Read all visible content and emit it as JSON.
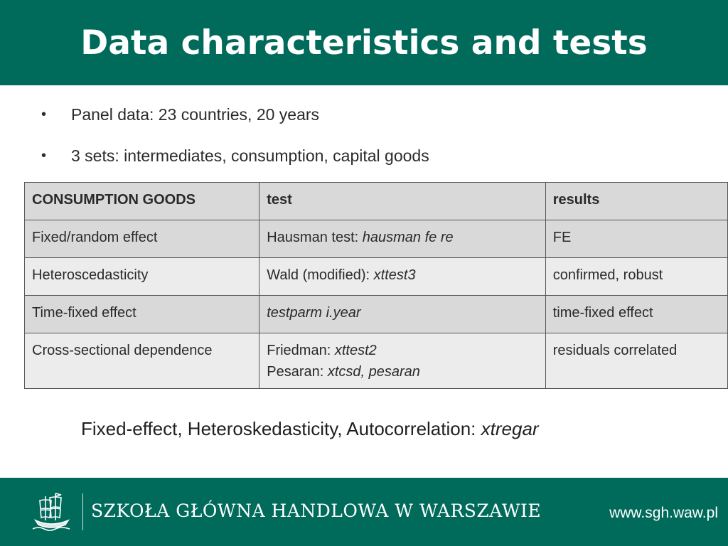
{
  "header": {
    "title": "Data characteristics and tests"
  },
  "bullets": [
    "Panel data: 23 countries, 20 years",
    "3 sets: intermediates, consumption, capital goods"
  ],
  "table": {
    "headers": [
      "CONSUMPTION GOODS",
      "test",
      "results"
    ],
    "rows": [
      {
        "label": "Fixed/random effect",
        "test_prefix": "Hausman test: ",
        "test_cmd": "hausman fe re",
        "result": "FE"
      },
      {
        "label": "Heteroscedasticity",
        "test_prefix": "Wald (modified): ",
        "test_cmd": "xttest3",
        "result": "confirmed, robust"
      },
      {
        "label": "Time-fixed effect",
        "test_cmd": "testparm i.year",
        "result": "time-fixed effect"
      },
      {
        "label": "Cross-sectional dependence",
        "test_prefix": "Friedman: ",
        "test_cmd": "xttest2",
        "test2_prefix": "Pesaran: ",
        "test2_cmd": "xtcsd, pesaran",
        "result": "residuals correlated"
      }
    ]
  },
  "summary": {
    "prefix": "Fixed-effect, Heteroskedasticity, Autocorrelation: ",
    "cmd": "xtregar"
  },
  "footer": {
    "school": "SZKOŁA GŁÓWNA HANDLOWA W WARSZAWIE",
    "url": "www.sgh.waw.pl",
    "logo_icon": "ship-icon"
  },
  "colors": {
    "brand": "#006a5b",
    "row_dark": "#d9d9d9",
    "row_light": "#ececec"
  }
}
